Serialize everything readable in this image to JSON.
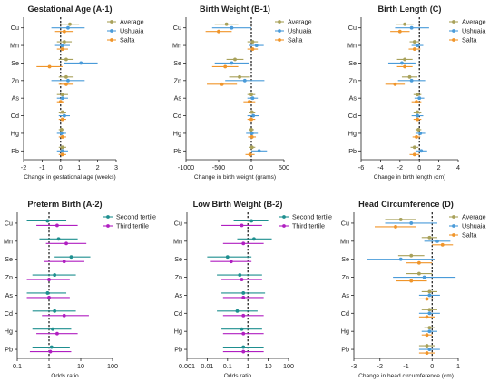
{
  "colors": {
    "average": "#a8a15a",
    "ushuaia": "#4a9bd9",
    "salta": "#f0952a",
    "second_tertile": "#1e8f8f",
    "third_tertile": "#b01fc1"
  },
  "chart_data": [
    {
      "type": "forest",
      "title": "Gestational Age (A-1)",
      "xlabel": "Change in gestational age (weeks)",
      "categories": [
        "Cu",
        "Mn",
        "Se",
        "Zn",
        "As",
        "Cd",
        "Hg",
        "Pb"
      ],
      "xlim": [
        -2,
        3
      ],
      "xticks": [
        -2,
        -1,
        0,
        1,
        2,
        3
      ],
      "xticklabels": [
        "-2",
        "-1",
        "0",
        "1",
        "2",
        "3"
      ],
      "reference": 0,
      "legend": "top-right",
      "series": [
        {
          "name": "Average",
          "color_key": "average",
          "values": [
            0.5,
            0.2,
            0.3,
            0.3,
            0.1,
            0.1,
            0.05,
            0.1
          ],
          "lower": [
            0.0,
            -0.2,
            -0.1,
            -0.1,
            -0.2,
            -0.1,
            -0.1,
            -0.1
          ],
          "upper": [
            1.0,
            0.6,
            0.7,
            0.7,
            0.4,
            0.3,
            0.2,
            0.3
          ]
        },
        {
          "name": "Ushuaia",
          "color_key": "ushuaia",
          "values": [
            0.4,
            0.1,
            1.1,
            0.4,
            0.1,
            0.2,
            0.05,
            0.1
          ],
          "lower": [
            -0.5,
            -0.3,
            0.2,
            -0.5,
            -0.2,
            -0.1,
            -0.2,
            -0.2
          ],
          "upper": [
            1.3,
            0.5,
            2.0,
            1.3,
            0.4,
            0.5,
            0.3,
            0.4
          ]
        },
        {
          "name": "Salta",
          "color_key": "salta",
          "values": [
            0.2,
            0.1,
            -0.6,
            0.3,
            0.0,
            0.1,
            0.1,
            0.1
          ],
          "lower": [
            -0.3,
            -0.2,
            -1.3,
            -0.1,
            -0.2,
            -0.1,
            -0.1,
            -0.1
          ],
          "upper": [
            0.7,
            0.4,
            0.1,
            0.7,
            0.2,
            0.3,
            0.3,
            0.3
          ]
        }
      ]
    },
    {
      "type": "forest",
      "title": "Birth Weight (B-1)",
      "xlabel": "Change in birth weight (grams)",
      "categories": [
        "Cu",
        "Mn",
        "Se",
        "Zn",
        "As",
        "Cd",
        "Hg",
        "Pb"
      ],
      "xlim": [
        -1000,
        500
      ],
      "xticks": [
        -1000,
        -500,
        0,
        500
      ],
      "xticklabels": [
        "-1000",
        "-500",
        "0",
        "500"
      ],
      "reference": 0,
      "legend": "top-right",
      "series": [
        {
          "name": "Average",
          "color_key": "average",
          "values": [
            -380,
            20,
            -250,
            -180,
            0,
            10,
            0,
            10
          ],
          "lower": [
            -560,
            -60,
            -380,
            -340,
            -60,
            -40,
            -40,
            -40
          ],
          "upper": [
            -200,
            100,
            -120,
            -20,
            60,
            60,
            40,
            60
          ]
        },
        {
          "name": "Ushuaia",
          "color_key": "ushuaia",
          "values": [
            -300,
            80,
            -300,
            -100,
            20,
            30,
            10,
            120
          ],
          "lower": [
            -600,
            -30,
            -560,
            -400,
            -60,
            -60,
            -80,
            0
          ],
          "upper": [
            0,
            190,
            -40,
            200,
            100,
            120,
            100,
            240
          ]
        },
        {
          "name": "Salta",
          "color_key": "salta",
          "values": [
            -500,
            20,
            -400,
            -450,
            -30,
            0,
            10,
            -20
          ],
          "lower": [
            -700,
            -60,
            -600,
            -680,
            -120,
            -60,
            -50,
            -90
          ],
          "upper": [
            -300,
            100,
            -200,
            -220,
            60,
            60,
            70,
            50
          ]
        }
      ]
    },
    {
      "type": "forest",
      "title": "Birth Length (C)",
      "xlabel": "Change in birth length (cm)",
      "categories": [
        "Cu",
        "Mn",
        "Se",
        "Zn",
        "As",
        "Cd",
        "Hg",
        "Pb"
      ],
      "xlim": [
        -6,
        4
      ],
      "xticks": [
        -6,
        -4,
        -2,
        0,
        2,
        4
      ],
      "xticklabels": [
        "-6",
        "-4",
        "-2",
        "0",
        "2",
        "4"
      ],
      "reference": 0,
      "legend": "top-right",
      "series": [
        {
          "name": "Average",
          "color_key": "average",
          "values": [
            -1.5,
            -0.5,
            -1.5,
            -1.0,
            -0.2,
            -0.2,
            -0.1,
            -0.5
          ],
          "lower": [
            -2.4,
            -1.0,
            -2.3,
            -1.8,
            -0.6,
            -0.6,
            -0.4,
            -0.9
          ],
          "upper": [
            -0.6,
            0.0,
            -0.7,
            -0.2,
            0.2,
            0.2,
            0.2,
            -0.1
          ]
        },
        {
          "name": "Ushuaia",
          "color_key": "ushuaia",
          "values": [
            -0.8,
            -0.2,
            -1.8,
            -0.8,
            0.0,
            -0.2,
            0.1,
            0.2
          ],
          "lower": [
            -2.5,
            -0.8,
            -3.2,
            -2.2,
            -0.5,
            -0.8,
            -0.4,
            -0.4
          ],
          "upper": [
            1.0,
            0.4,
            -0.4,
            0.6,
            0.5,
            0.4,
            0.6,
            0.8
          ]
        },
        {
          "name": "Salta",
          "color_key": "salta",
          "values": [
            -2.0,
            -0.5,
            -1.5,
            -2.5,
            -0.3,
            -0.2,
            -0.3,
            -0.5
          ],
          "lower": [
            -3.0,
            -1.1,
            -2.3,
            -3.5,
            -0.8,
            -0.6,
            -0.7,
            -1.0
          ],
          "upper": [
            -1.0,
            0.1,
            -0.7,
            -1.5,
            0.2,
            0.2,
            0.1,
            0.0
          ]
        }
      ]
    },
    {
      "type": "forest",
      "title": "Preterm Birth (A-2)",
      "xlabel": "Odds ratio",
      "categories": [
        "Cu",
        "Mn",
        "Se",
        "Zn",
        "As",
        "Cd",
        "Hg",
        "Pb"
      ],
      "scale": "log",
      "xlim": [
        0.1,
        100
      ],
      "xticks": [
        0.1,
        1,
        10,
        100
      ],
      "xticklabels": [
        "0.1",
        "1",
        "10",
        "100"
      ],
      "reference": 1,
      "legend": "top-right",
      "series": [
        {
          "name": "Second tertile",
          "color_key": "second_tertile",
          "values": [
            0.9,
            2.0,
            5.0,
            1.5,
            0.9,
            1.5,
            1.3,
            1.2
          ],
          "lower": [
            0.2,
            0.5,
            1.5,
            0.3,
            0.2,
            0.3,
            0.3,
            0.3
          ],
          "upper": [
            3.5,
            8.0,
            20.0,
            7.0,
            3.5,
            7.0,
            5.0,
            4.5
          ]
        },
        {
          "name": "Third tertile",
          "color_key": "third_tertile",
          "values": [
            1.8,
            3.5,
            3.0,
            1.0,
            1.0,
            3.0,
            1.8,
            1.1
          ],
          "lower": [
            0.4,
            0.8,
            0.7,
            0.2,
            0.2,
            0.6,
            0.4,
            0.25
          ],
          "upper": [
            8.0,
            15.0,
            13.0,
            4.5,
            4.5,
            18.0,
            8.0,
            5.0
          ]
        }
      ]
    },
    {
      "type": "forest",
      "title": "Low Birth Weight (B-2)",
      "xlabel": "Odds ratio",
      "categories": [
        "Cu",
        "Mn",
        "Se",
        "Zn",
        "As",
        "Cd",
        "Hg",
        "Pb"
      ],
      "scale": "log",
      "xlim": [
        0.001,
        100
      ],
      "xticks": [
        0.001,
        0.01,
        0.1,
        1,
        10,
        100
      ],
      "xticklabels": [
        "0.001",
        "0.01",
        "0.1",
        "1",
        "10",
        "100"
      ],
      "reference": 1,
      "legend": "top-right",
      "series": [
        {
          "name": "Second tertile",
          "color_key": "second_tertile",
          "values": [
            1.5,
            2.0,
            0.1,
            0.4,
            0.6,
            0.3,
            0.5,
            0.6
          ],
          "lower": [
            0.2,
            0.3,
            0.01,
            0.03,
            0.05,
            0.03,
            0.05,
            0.06
          ],
          "upper": [
            10,
            15,
            1.5,
            5,
            7,
            3,
            5,
            6
          ]
        },
        {
          "name": "Third tertile",
          "color_key": "third_tertile",
          "values": [
            0.5,
            0.6,
            0.15,
            0.5,
            0.6,
            0.6,
            0.6,
            0.6
          ],
          "lower": [
            0.05,
            0.06,
            0.015,
            0.05,
            0.06,
            0.06,
            0.06,
            0.06
          ],
          "upper": [
            5,
            6,
            1.5,
            5,
            6,
            6,
            6,
            6
          ]
        }
      ]
    },
    {
      "type": "forest",
      "title": "Head Circumference (D)",
      "xlabel": "Change in head circumference (cm)",
      "categories": [
        "Cu",
        "Mn",
        "Se",
        "Zn",
        "As",
        "Cd",
        "Hg",
        "Pb"
      ],
      "xlim": [
        -3,
        1
      ],
      "xticks": [
        -3,
        -2,
        -1,
        0,
        1
      ],
      "xticklabels": [
        "-3",
        "-2",
        "-1",
        "0",
        "1"
      ],
      "reference": 0,
      "legend": "top-right",
      "series": [
        {
          "name": "Average",
          "color_key": "average",
          "values": [
            -1.2,
            -0.1,
            -0.8,
            -0.5,
            -0.1,
            -0.1,
            -0.1,
            -0.2
          ],
          "lower": [
            -1.8,
            -0.4,
            -1.3,
            -1.0,
            -0.4,
            -0.4,
            -0.3,
            -0.5
          ],
          "upper": [
            -0.6,
            0.2,
            -0.3,
            0.0,
            0.2,
            0.2,
            0.1,
            0.1
          ]
        },
        {
          "name": "Ushuaia",
          "color_key": "ushuaia",
          "values": [
            -0.8,
            0.2,
            -1.2,
            -0.3,
            -0.1,
            -0.1,
            -0.1,
            -0.1
          ],
          "lower": [
            -1.8,
            -0.3,
            -2.5,
            -1.5,
            -0.5,
            -0.5,
            -0.4,
            -0.5
          ],
          "upper": [
            0.2,
            0.7,
            0.1,
            0.9,
            0.3,
            0.3,
            0.2,
            0.3
          ]
        },
        {
          "name": "Salta",
          "color_key": "salta",
          "values": [
            -1.4,
            0.4,
            -0.5,
            -0.8,
            -0.2,
            -0.2,
            -0.2,
            -0.2
          ],
          "lower": [
            -2.2,
            0.0,
            -1.0,
            -1.4,
            -0.5,
            -0.5,
            -0.4,
            -0.5
          ],
          "upper": [
            -0.6,
            0.8,
            0.0,
            -0.2,
            0.1,
            0.1,
            0.0,
            0.1
          ]
        }
      ]
    }
  ]
}
